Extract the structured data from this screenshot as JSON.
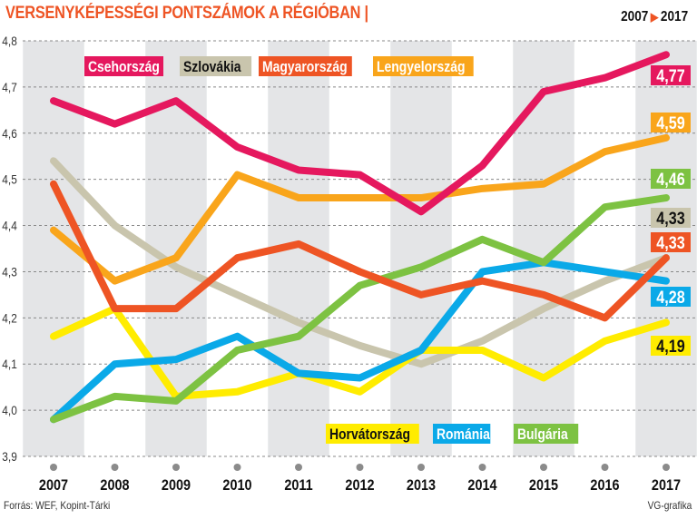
{
  "header": {
    "title": "VERSENYKÉPESSÉGI PONTSZÁMOK A RÉGIÓBAN |",
    "period_start": "2007",
    "period_arrow": "▶",
    "period_end": "2017"
  },
  "footer": {
    "source": "Forrás: WEF, Kopint-Tárki",
    "credit": "VG-grafika"
  },
  "chart_data": {
    "type": "line",
    "title": "VERSENYKÉPESSÉGI PONTSZÁMOK A RÉGIÓBAN",
    "xlabel": "",
    "ylabel": "",
    "x": [
      "2007",
      "2008",
      "2009",
      "2010",
      "2011",
      "2012",
      "2013",
      "2014",
      "2015",
      "2016",
      "2017"
    ],
    "ylim": [
      3.9,
      4.8
    ],
    "yticks": [
      3.9,
      4.0,
      4.1,
      4.2,
      4.3,
      4.4,
      4.5,
      4.6,
      4.7,
      4.8
    ],
    "ytick_labels": [
      "3,9",
      "4,0",
      "4,1",
      "4,2",
      "4,3",
      "4,4",
      "4,5",
      "4,6",
      "4,7",
      "4,8"
    ],
    "grid": "horizontal dashed",
    "alternating_year_bands": [
      "2007",
      "2009",
      "2011",
      "2013",
      "2015",
      "2017"
    ],
    "legend_placement": "top and bottom inside plot",
    "series": [
      {
        "name": "Csehország",
        "color": "#e5185e",
        "text_color": "#ffffff",
        "legend_row": "top",
        "end_label": "4,77",
        "values": [
          4.67,
          4.62,
          4.67,
          4.57,
          4.52,
          4.51,
          4.43,
          4.53,
          4.69,
          4.72,
          4.77
        ]
      },
      {
        "name": "Szlovákia",
        "color": "#c9c5ad",
        "text_color": "#111111",
        "legend_row": "top",
        "end_label": "4,33",
        "values": [
          4.54,
          4.4,
          4.31,
          4.25,
          4.19,
          4.14,
          4.1,
          4.15,
          4.22,
          4.28,
          4.33
        ]
      },
      {
        "name": "Magyarország",
        "color": "#ee5424",
        "text_color": "#ffffff",
        "legend_row": "top",
        "end_label": "4,33",
        "values": [
          4.49,
          4.22,
          4.22,
          4.33,
          4.36,
          4.3,
          4.25,
          4.28,
          4.25,
          4.2,
          4.33
        ]
      },
      {
        "name": "Lengyelország",
        "color": "#f9a51b",
        "text_color": "#ffffff",
        "legend_row": "top",
        "end_label": "4,59",
        "values": [
          4.39,
          4.28,
          4.33,
          4.51,
          4.46,
          4.46,
          4.46,
          4.48,
          4.49,
          4.56,
          4.59
        ]
      },
      {
        "name": "Horvátország",
        "color": "#ffec00",
        "text_color": "#111111",
        "legend_row": "bottom",
        "end_label": "4,19",
        "values": [
          4.16,
          4.22,
          4.03,
          4.04,
          4.08,
          4.04,
          4.13,
          4.13,
          4.07,
          4.15,
          4.19
        ]
      },
      {
        "name": "Románia",
        "color": "#0aa9e8",
        "text_color": "#ffffff",
        "legend_row": "bottom",
        "end_label": "4,28",
        "values": [
          3.98,
          4.1,
          4.11,
          4.16,
          4.08,
          4.07,
          4.13,
          4.3,
          4.32,
          4.3,
          4.28
        ]
      },
      {
        "name": "Bulgária",
        "color": "#7dc242",
        "text_color": "#ffffff",
        "legend_row": "bottom",
        "end_label": "4,46",
        "values": [
          3.98,
          4.03,
          4.02,
          4.13,
          4.16,
          4.27,
          4.31,
          4.37,
          4.32,
          4.44,
          4.46
        ]
      }
    ]
  }
}
